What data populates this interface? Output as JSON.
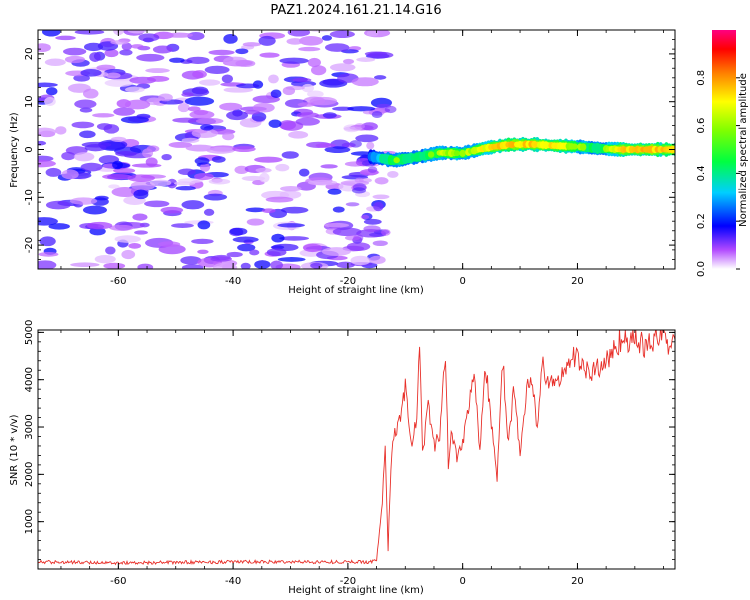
{
  "figure": {
    "title": "PAZ1.2024.161.21.14.G16"
  },
  "chart_data": [
    {
      "type": "heatmap",
      "xlabel": "Height of straight line (km)",
      "ylabel": "Frequency (Hz)",
      "xlim": [
        -74,
        37
      ],
      "ylim": [
        -25,
        25
      ],
      "xticks": [
        -60,
        -40,
        -20,
        0,
        20
      ],
      "yticks": [
        -20,
        -10,
        0,
        10,
        20
      ],
      "colorbar": {
        "label": "Normalized spectral amplitude",
        "range": [
          0,
          1
        ],
        "ticks": [
          "0.0",
          "0.2",
          "0.4",
          "0.6",
          "0.8"
        ]
      },
      "signal_ridge": {
        "height_km": [
          -16,
          -12,
          -8,
          -4,
          0,
          4,
          8,
          12,
          16,
          20,
          24,
          28,
          32,
          37
        ],
        "frequency_hz": [
          -1.5,
          -2.3,
          -1.6,
          -0.7,
          -0.8,
          0.3,
          1.0,
          1.1,
          0.8,
          0.6,
          0.2,
          0.0,
          0.0,
          0.0
        ],
        "peak_amplitude": [
          0.25,
          0.55,
          0.45,
          0.6,
          0.55,
          0.7,
          0.85,
          0.8,
          0.75,
          0.6,
          0.45,
          0.8,
          0.85,
          0.8
        ]
      },
      "noise_region": {
        "height_km": [
          -74,
          -14
        ],
        "frequency_hz": [
          -25,
          25
        ],
        "amplitude_range": [
          0.0,
          0.3
        ]
      }
    },
    {
      "type": "line",
      "xlabel": "Height of straight line (km)",
      "ylabel": "SNR (10 * v/v)",
      "xlim": [
        -74,
        37
      ],
      "ylim": [
        0,
        5050
      ],
      "xticks": [
        -60,
        -40,
        -20,
        0,
        20
      ],
      "yticks": [
        1000,
        2000,
        3000,
        4000,
        5000
      ],
      "color": "#e8302a",
      "series": [
        {
          "x": [
            -74,
            -60,
            -40,
            -20,
            -16,
            -15,
            -14,
            -13.5,
            -13,
            -12.5,
            -12,
            -11,
            -10,
            -9,
            -8,
            -7.5,
            -7,
            -6,
            -5,
            -4,
            -3,
            -2.5,
            -2,
            -1,
            0,
            1,
            2,
            3,
            4,
            5,
            6,
            7,
            8,
            9,
            10,
            11,
            12,
            13,
            14,
            15,
            16,
            17,
            18,
            20,
            22,
            24,
            26,
            27,
            28,
            30,
            32,
            34,
            36,
            37
          ],
          "y": [
            150,
            130,
            150,
            150,
            150,
            200,
            1400,
            2600,
            400,
            2200,
            2800,
            3100,
            3900,
            2600,
            3100,
            4700,
            2400,
            3500,
            2600,
            2800,
            4600,
            2200,
            2900,
            2400,
            2700,
            3400,
            4300,
            2500,
            4300,
            3100,
            1900,
            4400,
            2600,
            3900,
            2300,
            3700,
            4100,
            3000,
            4400,
            3800,
            4000,
            4000,
            4300,
            4500,
            4100,
            4300,
            4500,
            4800,
            4900,
            4800,
            4700,
            4900,
            4800,
            4850
          ]
        }
      ]
    }
  ]
}
